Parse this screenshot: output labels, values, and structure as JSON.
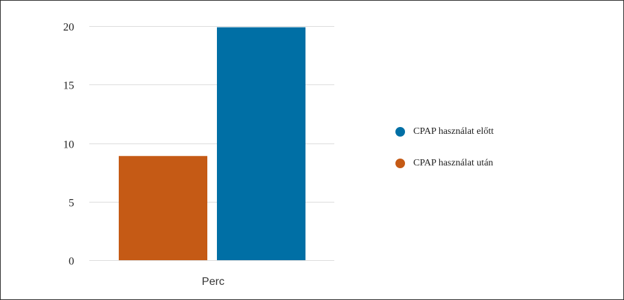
{
  "chart_data": {
    "type": "bar",
    "categories": [
      "Perc"
    ],
    "series": [
      {
        "name": "CPAP használat után",
        "values": [
          8.9
        ],
        "color": "#c55a15"
      },
      {
        "name": "CPAP használat előtt",
        "values": [
          19.9
        ],
        "color": "#006fa5"
      }
    ],
    "legend_order": [
      "CPAP használat előtt",
      "CPAP használat után"
    ],
    "yticks": [
      "0",
      "5",
      "10",
      "15",
      "20"
    ],
    "ylim": [
      0,
      20
    ],
    "grid": true,
    "legend_position": "right"
  },
  "legend": {
    "items": [
      {
        "label": "CPAP használat előtt",
        "color": "#006fa5"
      },
      {
        "label": "CPAP használat után",
        "color": "#c55a15"
      }
    ]
  }
}
